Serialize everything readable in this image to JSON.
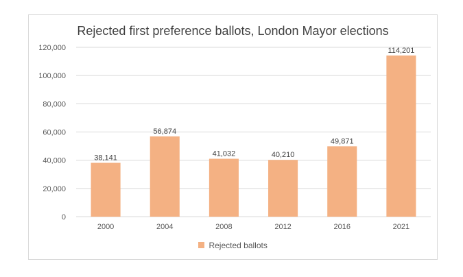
{
  "chart_data": {
    "type": "bar",
    "title": "Rejected first preference ballots, London Mayor elections",
    "categories": [
      "2000",
      "2004",
      "2008",
      "2012",
      "2016",
      "2021"
    ],
    "series": [
      {
        "name": "Rejected ballots",
        "values": [
          38141,
          56874,
          41032,
          40210,
          49871,
          114201
        ]
      }
    ],
    "data_labels": [
      "38,141",
      "56,874",
      "41,032",
      "40,210",
      "49,871",
      "114,201"
    ],
    "y_ticks": [
      0,
      20000,
      40000,
      60000,
      80000,
      100000,
      120000
    ],
    "y_tick_labels": [
      "0",
      "20,000",
      "40,000",
      "60,000",
      "80,000",
      "100,000",
      "120,000"
    ],
    "ylim": [
      0,
      120000
    ],
    "xlabel": "",
    "ylabel": "",
    "grid": true,
    "legend_position": "bottom",
    "bar_color": "#f4b183",
    "grid_color": "#d9d9d9"
  }
}
